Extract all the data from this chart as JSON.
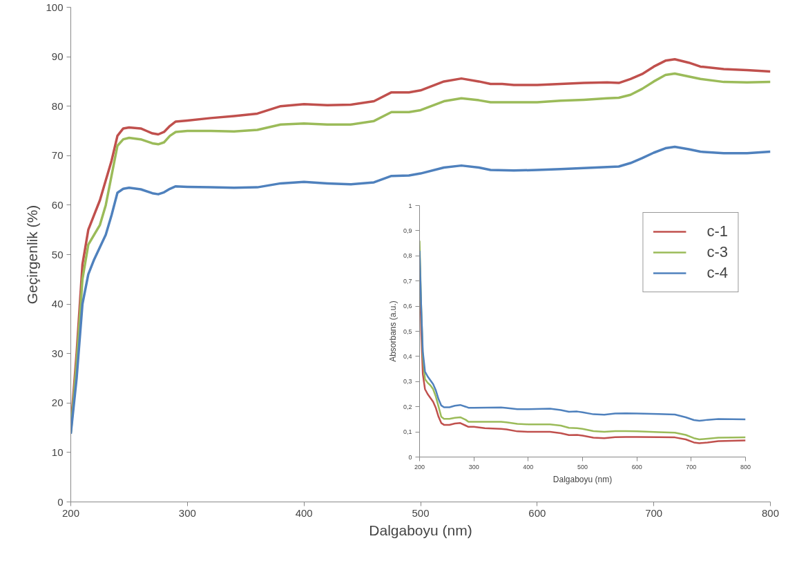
{
  "chart_data": [
    {
      "type": "line",
      "xlabel": "Dalgaboyu (nm)",
      "ylabel": "Geçirgenlik (%)",
      "xlim": [
        200,
        800
      ],
      "ylim": [
        0,
        100
      ],
      "xticks": [
        200,
        300,
        400,
        500,
        600,
        700,
        800
      ],
      "yticks": [
        0,
        10,
        20,
        30,
        40,
        50,
        60,
        70,
        80,
        90,
        100
      ],
      "grid": false,
      "legend": false,
      "series": [
        {
          "color": "#c0504d",
          "x": [
            200,
            205,
            210,
            215,
            220,
            225,
            230,
            235,
            240,
            245,
            250,
            260,
            265,
            270,
            275,
            280,
            285,
            290,
            300,
            320,
            340,
            360,
            380,
            400,
            420,
            440,
            460,
            475,
            490,
            500,
            520,
            535,
            550,
            560,
            570,
            580,
            600,
            620,
            640,
            660,
            670,
            680,
            690,
            700,
            710,
            718,
            730,
            740,
            760,
            780,
            800
          ],
          "values": [
            15,
            30,
            48,
            55,
            58,
            61,
            65,
            69,
            74,
            75.5,
            75.7,
            75.5,
            75,
            74.5,
            74.3,
            74.8,
            76,
            76.9,
            77.1,
            77.6,
            78,
            78.5,
            80,
            80.4,
            80.2,
            80.3,
            81,
            82.8,
            82.8,
            83.2,
            85,
            85.6,
            85,
            84.5,
            84.5,
            84.3,
            84.3,
            84.5,
            84.7,
            84.8,
            84.7,
            85.5,
            86.5,
            88,
            89.2,
            89.5,
            88.8,
            88,
            87.5,
            87.3,
            87
          ]
        },
        {
          "color": "#9bbb59",
          "x": [
            200,
            205,
            210,
            215,
            220,
            225,
            230,
            235,
            240,
            245,
            250,
            260,
            270,
            275,
            280,
            285,
            290,
            300,
            320,
            340,
            360,
            380,
            400,
            420,
            440,
            460,
            475,
            490,
            500,
            520,
            535,
            550,
            560,
            580,
            600,
            620,
            640,
            660,
            670,
            680,
            690,
            700,
            710,
            718,
            730,
            740,
            760,
            780,
            800
          ],
          "values": [
            14,
            28,
            45,
            52,
            54,
            56,
            60,
            66,
            72,
            73.3,
            73.6,
            73.3,
            72.5,
            72.3,
            72.7,
            74,
            74.8,
            75,
            75,
            74.9,
            75.2,
            76.3,
            76.5,
            76.3,
            76.3,
            77,
            78.8,
            78.8,
            79.2,
            81,
            81.6,
            81.2,
            80.8,
            80.8,
            80.8,
            81.1,
            81.3,
            81.6,
            81.7,
            82.3,
            83.5,
            85,
            86.3,
            86.6,
            86,
            85.5,
            84.9,
            84.8,
            84.9
          ]
        },
        {
          "color": "#4f81bd",
          "x": [
            200,
            205,
            210,
            215,
            220,
            225,
            230,
            235,
            240,
            245,
            250,
            260,
            270,
            275,
            280,
            285,
            290,
            300,
            320,
            340,
            360,
            380,
            400,
            420,
            440,
            460,
            475,
            490,
            500,
            520,
            535,
            550,
            560,
            580,
            600,
            620,
            640,
            660,
            670,
            680,
            690,
            700,
            710,
            718,
            730,
            740,
            760,
            780,
            800
          ],
          "values": [
            13.8,
            25,
            40,
            46,
            49,
            51.5,
            54,
            58,
            62.5,
            63.3,
            63.5,
            63.2,
            62.4,
            62.2,
            62.6,
            63.3,
            63.8,
            63.7,
            63.6,
            63.5,
            63.6,
            64.4,
            64.7,
            64.4,
            64.2,
            64.6,
            65.9,
            66,
            66.4,
            67.6,
            68,
            67.6,
            67.1,
            67,
            67.1,
            67.3,
            67.5,
            67.7,
            67.8,
            68.5,
            69.5,
            70.6,
            71.5,
            71.8,
            71.3,
            70.8,
            70.5,
            70.5,
            70.8
          ]
        }
      ]
    },
    {
      "type": "line",
      "xlabel": "Dalgaboyu (nm)",
      "ylabel": "Absorbans (a.u.)",
      "xlim": [
        200,
        800
      ],
      "ylim": [
        0,
        1
      ],
      "xticks": [
        200,
        300,
        400,
        500,
        600,
        700,
        800
      ],
      "yticks": [
        0,
        {
          "value": 0.1,
          "label": "0,1"
        },
        {
          "value": 0.2,
          "label": "0,2"
        },
        {
          "value": 0.3,
          "label": "0,3"
        },
        {
          "value": 0.4,
          "label": "0,4"
        },
        {
          "value": 0.5,
          "label": "0,5"
        },
        {
          "value": 0.6,
          "label": "0,6"
        },
        {
          "value": 0.7,
          "label": "0,7"
        },
        {
          "value": 0.8,
          "label": "0,8"
        },
        {
          "value": 0.9,
          "label": "0,9"
        },
        1
      ],
      "grid": false,
      "legend": "top right",
      "series": [
        {
          "name": "c-1",
          "color": "#c0504d",
          "x": [
            200,
            203,
            206,
            210,
            215,
            220,
            225,
            230,
            235,
            240,
            245,
            255,
            265,
            275,
            285,
            290,
            300,
            320,
            350,
            360,
            380,
            400,
            440,
            460,
            475,
            490,
            500,
            520,
            540,
            560,
            580,
            600,
            640,
            670,
            690,
            705,
            715,
            730,
            750,
            800
          ],
          "values": [
            0.8,
            0.5,
            0.33,
            0.27,
            0.25,
            0.235,
            0.22,
            0.195,
            0.16,
            0.135,
            0.128,
            0.128,
            0.133,
            0.135,
            0.125,
            0.12,
            0.12,
            0.115,
            0.112,
            0.11,
            0.102,
            0.1,
            0.1,
            0.095,
            0.087,
            0.088,
            0.085,
            0.077,
            0.075,
            0.079,
            0.08,
            0.08,
            0.079,
            0.078,
            0.07,
            0.058,
            0.055,
            0.058,
            0.063,
            0.066
          ]
        },
        {
          "name": "c-3",
          "color": "#9bbb59",
          "x": [
            200,
            203,
            206,
            210,
            215,
            220,
            225,
            230,
            235,
            240,
            245,
            255,
            265,
            275,
            285,
            290,
            300,
            350,
            360,
            380,
            400,
            440,
            460,
            475,
            490,
            500,
            520,
            540,
            560,
            580,
            600,
            640,
            670,
            690,
            705,
            715,
            730,
            750,
            800
          ],
          "values": [
            0.86,
            0.6,
            0.4,
            0.31,
            0.295,
            0.285,
            0.27,
            0.24,
            0.2,
            0.16,
            0.152,
            0.152,
            0.156,
            0.158,
            0.148,
            0.14,
            0.14,
            0.14,
            0.138,
            0.132,
            0.13,
            0.13,
            0.125,
            0.116,
            0.115,
            0.112,
            0.103,
            0.1,
            0.103,
            0.103,
            0.102,
            0.099,
            0.097,
            0.088,
            0.075,
            0.07,
            0.073,
            0.077,
            0.078
          ]
        },
        {
          "name": "c-4",
          "color": "#4f81bd",
          "x": [
            200,
            203,
            206,
            210,
            215,
            220,
            225,
            230,
            235,
            240,
            245,
            255,
            265,
            275,
            285,
            290,
            300,
            350,
            360,
            380,
            400,
            440,
            460,
            475,
            490,
            500,
            520,
            540,
            560,
            580,
            600,
            640,
            670,
            690,
            705,
            715,
            730,
            750,
            800
          ],
          "values": [
            0.82,
            0.6,
            0.42,
            0.34,
            0.32,
            0.305,
            0.29,
            0.265,
            0.23,
            0.205,
            0.198,
            0.198,
            0.204,
            0.207,
            0.2,
            0.196,
            0.196,
            0.197,
            0.195,
            0.19,
            0.19,
            0.192,
            0.187,
            0.18,
            0.181,
            0.178,
            0.17,
            0.168,
            0.173,
            0.174,
            0.173,
            0.171,
            0.169,
            0.158,
            0.147,
            0.144,
            0.148,
            0.151,
            0.15
          ]
        }
      ]
    }
  ]
}
